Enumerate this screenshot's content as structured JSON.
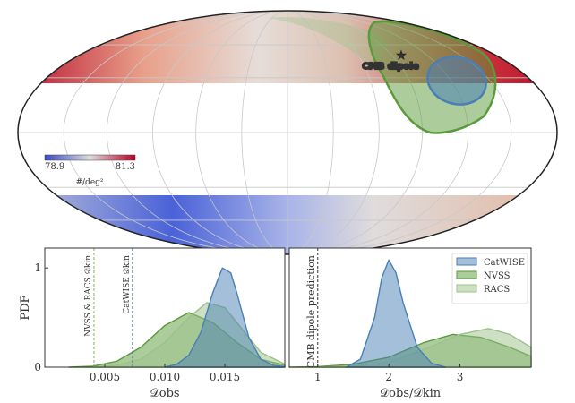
{
  "sky_map": {
    "annotation": "CMB dipole",
    "marker": "star-icon",
    "colorbar": {
      "min_label": "78.9",
      "max_label": "81.3",
      "unit": "#/deg²",
      "colors": [
        "#3b4cc0",
        "#dddcdc",
        "#b40426"
      ]
    },
    "contour_colors": {
      "CatWISE": "#4a7fb5",
      "NVSS": "#5a9a3a"
    }
  },
  "chart_data": [
    {
      "type": "area",
      "xlabel": "𝒟obs",
      "ylabel": "PDF",
      "xlim": [
        0,
        0.02
      ],
      "ylim": [
        0,
        1.2
      ],
      "xticks": [
        "0.005",
        "0.010",
        "0.015"
      ],
      "xtick_values": [
        0.005,
        0.01,
        0.015
      ],
      "yticks": [
        "0",
        "1"
      ],
      "ytick_values": [
        0,
        1
      ],
      "vlines": [
        {
          "label": "NVSS & RACS 𝒟kin",
          "x": 0.0041,
          "color": "#8bb05a"
        },
        {
          "label": "CatWISE 𝒟kin",
          "x": 0.0073,
          "color": "#5a7fa8"
        }
      ],
      "series": [
        {
          "name": "NVSS",
          "color": "#5a9a3a",
          "x": [
            0.002,
            0.004,
            0.006,
            0.008,
            0.01,
            0.012,
            0.014,
            0.016,
            0.018,
            0.02
          ],
          "y": [
            0,
            0.01,
            0.06,
            0.2,
            0.42,
            0.55,
            0.45,
            0.25,
            0.08,
            0.02
          ]
        },
        {
          "name": "RACS",
          "color": "#9cc28a",
          "x": [
            0.004,
            0.006,
            0.008,
            0.01,
            0.012,
            0.0135,
            0.015,
            0.016,
            0.018,
            0.02
          ],
          "y": [
            0,
            0.02,
            0.08,
            0.25,
            0.5,
            0.65,
            0.6,
            0.45,
            0.15,
            0.03
          ]
        },
        {
          "name": "CatWISE",
          "color": "#4a7fb5",
          "x": [
            0.01,
            0.011,
            0.012,
            0.013,
            0.014,
            0.0148,
            0.0155,
            0.016,
            0.017,
            0.018,
            0.019,
            0.02
          ],
          "y": [
            0,
            0.03,
            0.12,
            0.35,
            0.75,
            1.0,
            0.95,
            0.75,
            0.3,
            0.08,
            0.02,
            0.005
          ]
        }
      ]
    },
    {
      "type": "area",
      "xlabel": "𝒟obs/𝒟kin",
      "ylabel": "",
      "xlim": [
        0.6,
        4.0
      ],
      "ylim": [
        0,
        1.2
      ],
      "xticks": [
        "1",
        "2",
        "3"
      ],
      "xtick_values": [
        1,
        2,
        3
      ],
      "vlines": [
        {
          "label": "CMB dipole prediction",
          "x": 1,
          "color": "#333333"
        }
      ],
      "legend": {
        "placement": "top-right",
        "entries": [
          "CatWISE",
          "NVSS",
          "RACS"
        ]
      },
      "series": [
        {
          "name": "NVSS",
          "color": "#5a9a3a",
          "x": [
            0.6,
            1,
            1.5,
            2,
            2.5,
            2.9,
            3.3,
            3.7,
            4.0
          ],
          "y": [
            0,
            0.005,
            0.03,
            0.1,
            0.25,
            0.33,
            0.3,
            0.2,
            0.11
          ]
        },
        {
          "name": "RACS",
          "color": "#9cc28a",
          "x": [
            1,
            1.5,
            2,
            2.5,
            3,
            3.4,
            3.7,
            4.0
          ],
          "y": [
            0,
            0.01,
            0.05,
            0.18,
            0.33,
            0.39,
            0.33,
            0.2
          ]
        },
        {
          "name": "CatWISE",
          "color": "#4a7fb5",
          "x": [
            1.4,
            1.6,
            1.8,
            1.9,
            2.0,
            2.1,
            2.2,
            2.4,
            2.6,
            2.8
          ],
          "y": [
            0,
            0.08,
            0.5,
            0.9,
            1.08,
            0.95,
            0.65,
            0.2,
            0.04,
            0
          ]
        }
      ]
    }
  ]
}
